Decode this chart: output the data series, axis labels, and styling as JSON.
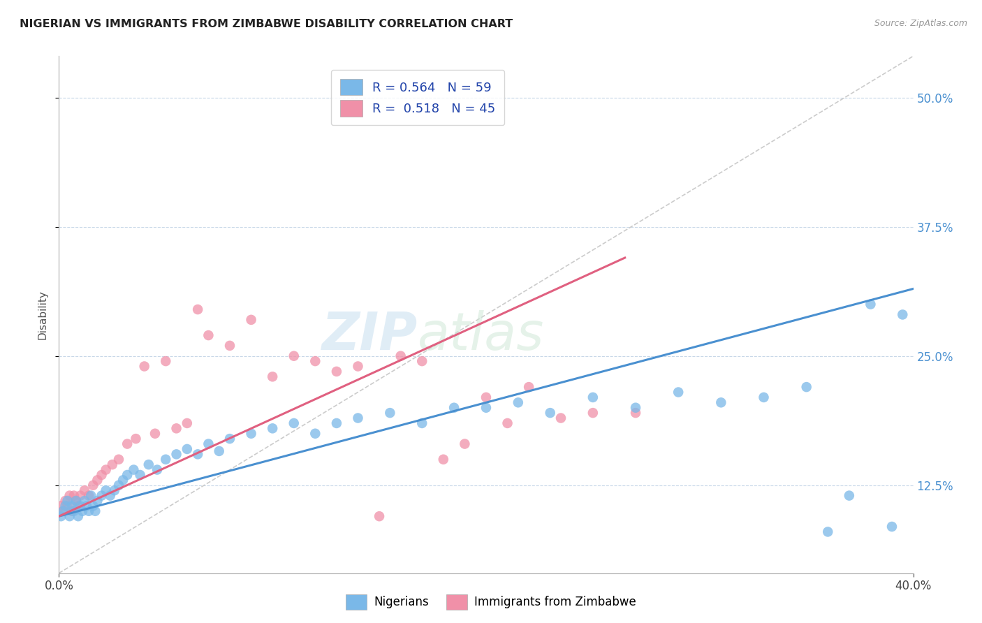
{
  "title": "NIGERIAN VS IMMIGRANTS FROM ZIMBABWE DISABILITY CORRELATION CHART",
  "source": "Source: ZipAtlas.com",
  "ylabel": "Disability",
  "ytick_values": [
    0.125,
    0.25,
    0.375,
    0.5
  ],
  "xlim": [
    0.0,
    0.4
  ],
  "ylim": [
    0.04,
    0.54
  ],
  "legend_line1": "R = 0.564   N = 59",
  "legend_line2": "R =  0.518   N = 45",
  "watermark_zip": "ZIP",
  "watermark_atlas": "atlas",
  "nigerians_color": "#7ab8e8",
  "zimbabwe_color": "#f090a8",
  "trend_nigerian_color": "#4a90d0",
  "trend_zimbabwe_color": "#e06080",
  "diagonal_color": "#cccccc",
  "background_color": "#ffffff",
  "grid_color": "#c8d8e8",
  "nigerians_x": [
    0.001,
    0.002,
    0.003,
    0.004,
    0.005,
    0.006,
    0.007,
    0.008,
    0.009,
    0.01,
    0.011,
    0.012,
    0.013,
    0.014,
    0.015,
    0.016,
    0.017,
    0.018,
    0.02,
    0.022,
    0.024,
    0.026,
    0.028,
    0.03,
    0.032,
    0.035,
    0.038,
    0.042,
    0.046,
    0.05,
    0.055,
    0.06,
    0.065,
    0.07,
    0.075,
    0.08,
    0.09,
    0.1,
    0.11,
    0.12,
    0.13,
    0.14,
    0.155,
    0.17,
    0.185,
    0.2,
    0.215,
    0.23,
    0.25,
    0.27,
    0.29,
    0.31,
    0.33,
    0.35,
    0.36,
    0.37,
    0.38,
    0.39,
    0.395
  ],
  "nigerians_y": [
    0.095,
    0.1,
    0.105,
    0.11,
    0.095,
    0.105,
    0.1,
    0.11,
    0.095,
    0.105,
    0.1,
    0.11,
    0.105,
    0.1,
    0.115,
    0.105,
    0.1,
    0.11,
    0.115,
    0.12,
    0.115,
    0.12,
    0.125,
    0.13,
    0.135,
    0.14,
    0.135,
    0.145,
    0.14,
    0.15,
    0.155,
    0.16,
    0.155,
    0.165,
    0.158,
    0.17,
    0.175,
    0.18,
    0.185,
    0.175,
    0.185,
    0.19,
    0.195,
    0.185,
    0.2,
    0.2,
    0.205,
    0.195,
    0.21,
    0.2,
    0.215,
    0.205,
    0.21,
    0.22,
    0.08,
    0.115,
    0.3,
    0.085,
    0.29
  ],
  "zimbabwe_x": [
    0.001,
    0.002,
    0.003,
    0.004,
    0.005,
    0.006,
    0.007,
    0.008,
    0.009,
    0.01,
    0.012,
    0.014,
    0.016,
    0.018,
    0.02,
    0.022,
    0.025,
    0.028,
    0.032,
    0.036,
    0.04,
    0.045,
    0.05,
    0.055,
    0.06,
    0.065,
    0.07,
    0.08,
    0.09,
    0.1,
    0.11,
    0.12,
    0.13,
    0.14,
    0.15,
    0.16,
    0.17,
    0.18,
    0.19,
    0.2,
    0.21,
    0.22,
    0.235,
    0.25,
    0.27
  ],
  "zimbabwe_y": [
    0.105,
    0.1,
    0.11,
    0.105,
    0.115,
    0.1,
    0.115,
    0.11,
    0.105,
    0.115,
    0.12,
    0.115,
    0.125,
    0.13,
    0.135,
    0.14,
    0.145,
    0.15,
    0.165,
    0.17,
    0.24,
    0.175,
    0.245,
    0.18,
    0.185,
    0.295,
    0.27,
    0.26,
    0.285,
    0.23,
    0.25,
    0.245,
    0.235,
    0.24,
    0.095,
    0.25,
    0.245,
    0.15,
    0.165,
    0.21,
    0.185,
    0.22,
    0.19,
    0.195,
    0.195
  ],
  "nig_trend_x0": 0.0,
  "nig_trend_y0": 0.095,
  "nig_trend_x1": 0.4,
  "nig_trend_y1": 0.315,
  "zim_trend_x0": 0.0,
  "zim_trend_y0": 0.095,
  "zim_trend_x1": 0.265,
  "zim_trend_y1": 0.345
}
